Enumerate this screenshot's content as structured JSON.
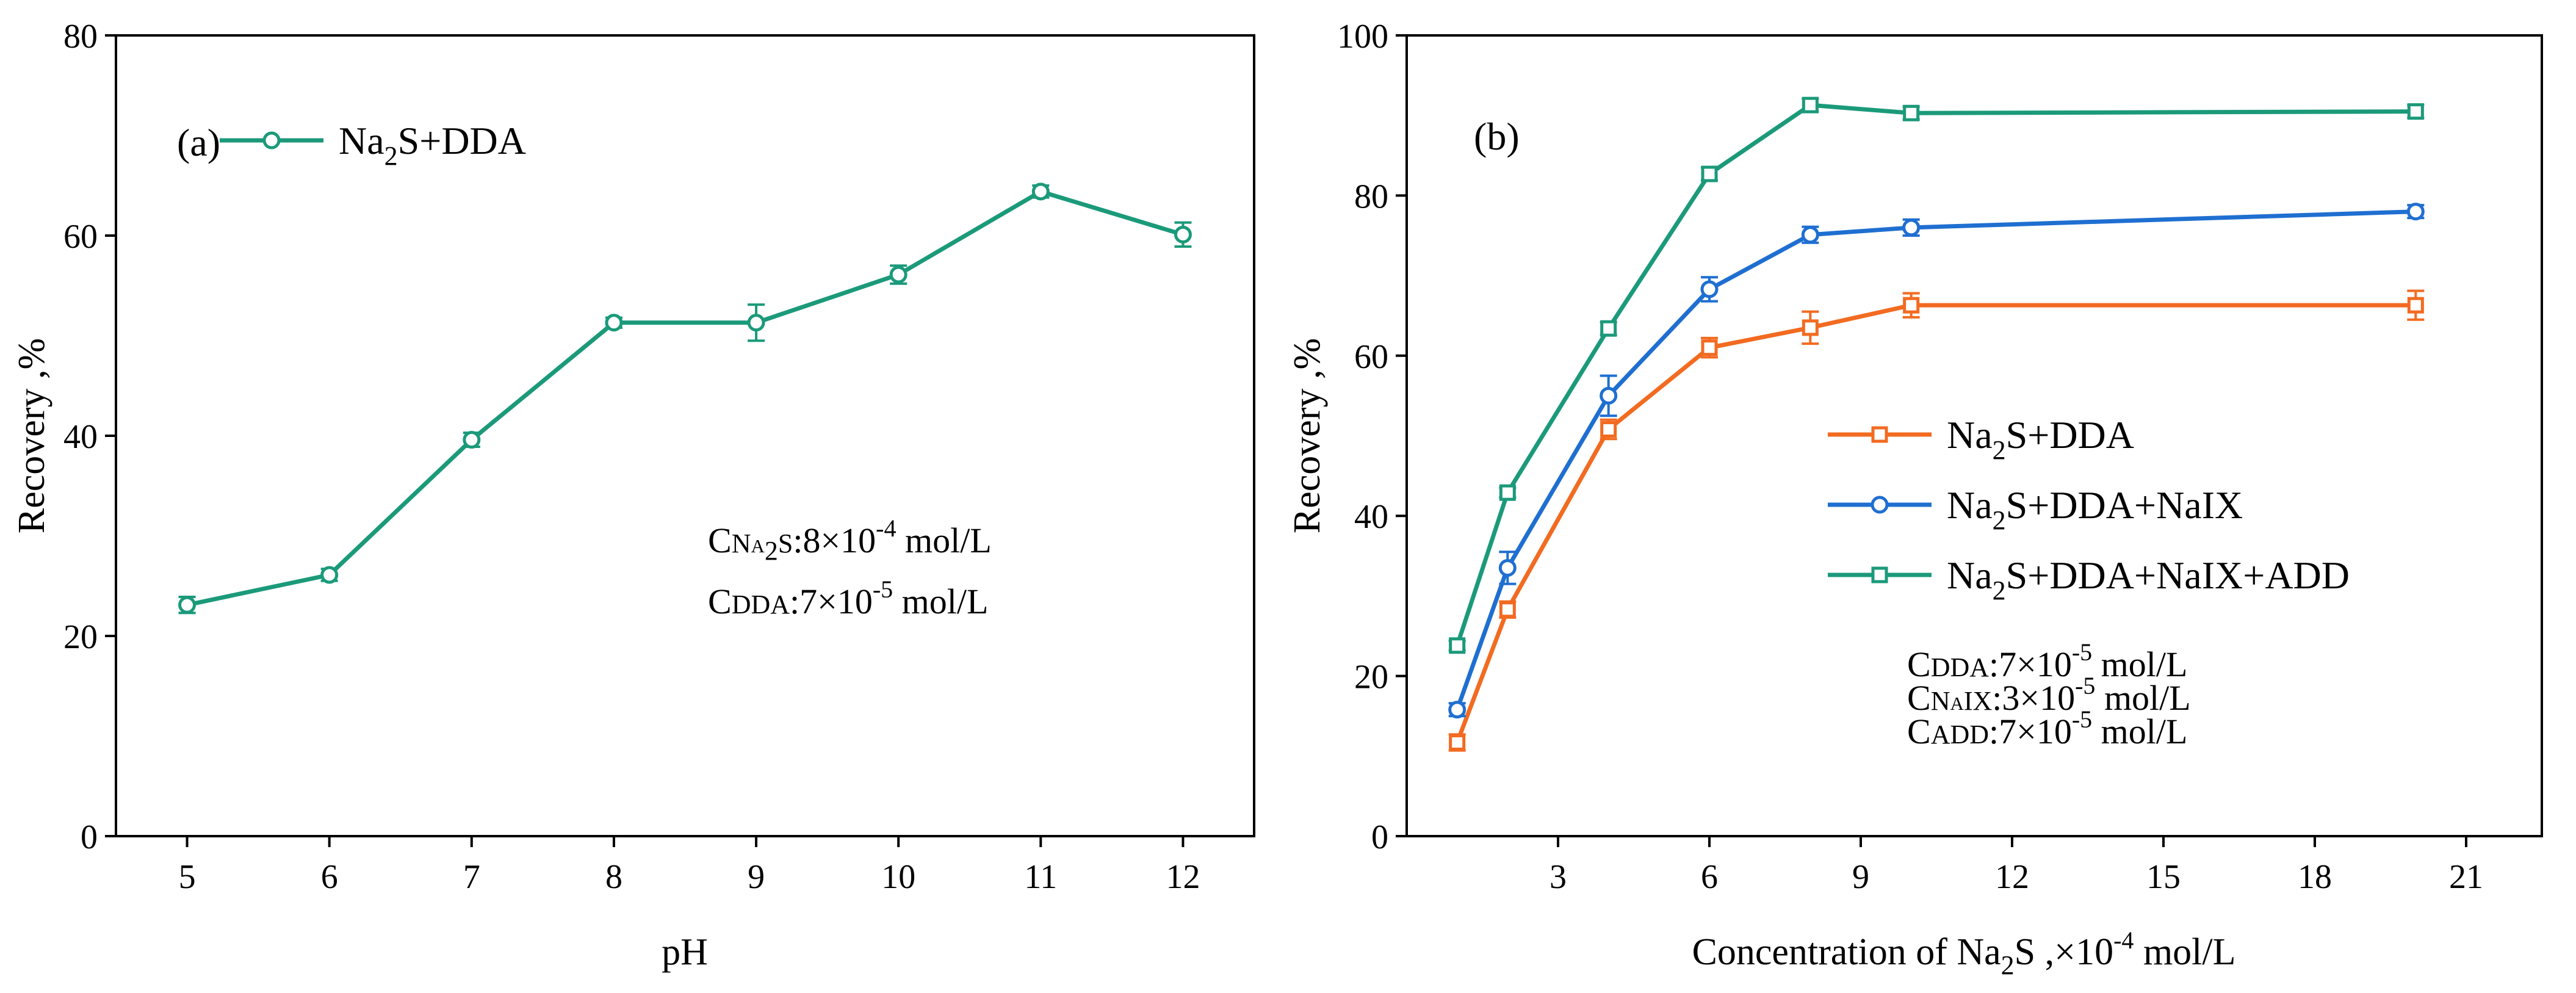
{
  "chart_data": [
    {
      "panel_label": "(a)",
      "type": "line",
      "xlabel": "pH",
      "ylabel": "Recovery ,%",
      "xlim": [
        4.5,
        12.5
      ],
      "ylim": [
        0,
        80
      ],
      "xticks": [
        5,
        6,
        7,
        8,
        9,
        10,
        11,
        12
      ],
      "yticks": [
        0,
        20,
        40,
        60,
        80
      ],
      "legend_position": "top-left",
      "series": [
        {
          "name": "Na2S+DDA",
          "name_parts": {
            "pre": "Na",
            "sub": "2",
            "post": "S+DDA"
          },
          "color": "#1b9a7a",
          "marker": "circle",
          "x": [
            5,
            6,
            7,
            8,
            9,
            10,
            11,
            12
          ],
          "values": [
            23.1,
            26.1,
            39.6,
            51.3,
            51.3,
            56.1,
            64.4,
            60.1
          ],
          "errors": [
            0.8,
            0.6,
            0.7,
            0.5,
            1.8,
            0.9,
            0.6,
            1.2
          ]
        }
      ],
      "annotations": [
        {
          "prefix": "C",
          "sc": "Na",
          "sub": "2",
          "sc2": "S",
          "text": ":8×10",
          "sup": "-4",
          "suffix": " mol/L"
        },
        {
          "prefix": "C",
          "sc": "DDA",
          "sub": "",
          "sc2": "",
          "text": ":7×10",
          "sup": "-5",
          "suffix": " mol/L"
        }
      ]
    },
    {
      "panel_label": "(b)",
      "type": "line",
      "xlabel": {
        "pre": "Concentration of Na",
        "sub": "2",
        "mid": "S ,×10",
        "sup": "-4",
        "post": " mol/L"
      },
      "ylabel": "Recovery ,%",
      "xlim": [
        0,
        22.5
      ],
      "ylim": [
        0,
        100
      ],
      "xticks": [
        3,
        6,
        9,
        12,
        15,
        18,
        21
      ],
      "yticks": [
        0,
        20,
        40,
        60,
        80,
        100
      ],
      "legend_position": "center-right",
      "series": [
        {
          "name": "Na2S+DDA",
          "name_parts": {
            "pre": "Na",
            "sub": "2",
            "post": "S+DDA"
          },
          "color": "#f26b21",
          "marker": "square",
          "x": [
            1,
            2,
            4,
            6,
            8,
            10,
            20
          ],
          "values": [
            11.7,
            28.3,
            50.8,
            61.0,
            63.5,
            66.3,
            66.3
          ],
          "errors": [
            1.0,
            1.0,
            1.2,
            1.2,
            2.0,
            1.5,
            1.8
          ]
        },
        {
          "name": "Na2S+DDA+NaIX",
          "name_parts": {
            "pre": "Na",
            "sub": "2",
            "post": "S+DDA+NaIX"
          },
          "color": "#1f6fd1",
          "marker": "circle",
          "x": [
            1,
            2,
            4,
            6,
            8,
            10,
            20
          ],
          "values": [
            15.8,
            33.5,
            55.0,
            68.3,
            75.1,
            76.0,
            78.0
          ],
          "errors": [
            0.8,
            2.0,
            2.5,
            1.5,
            1.0,
            1.0,
            0.8
          ]
        },
        {
          "name": "Na2S+DDA+NaIX+ADD",
          "name_parts": {
            "pre": "Na",
            "sub": "2",
            "post": "S+DDA+NaIX+ADD"
          },
          "color": "#1b9a7a",
          "marker": "square",
          "x": [
            1,
            2,
            4,
            6,
            8,
            10,
            20
          ],
          "values": [
            23.8,
            42.9,
            63.4,
            82.7,
            91.3,
            90.3,
            90.5
          ],
          "errors": [
            0.6,
            0.6,
            0.8,
            0.8,
            0.8,
            0.8,
            0.8
          ]
        }
      ],
      "annotations": [
        {
          "prefix": "C",
          "sc": "DDA",
          "sub": "",
          "sc2": "",
          "text": ":7×10",
          "sup": "-5",
          "suffix": " mol/L"
        },
        {
          "prefix": "C",
          "sc": "NaIX",
          "sub": "",
          "sc2": "",
          "text": ":3×10",
          "sup": "-5",
          "suffix": " mol/L"
        },
        {
          "prefix": "C",
          "sc": "ADD",
          "sub": "",
          "sc2": "",
          "text": ":7×10",
          "sup": "-5",
          "suffix": " mol/L"
        }
      ]
    }
  ]
}
